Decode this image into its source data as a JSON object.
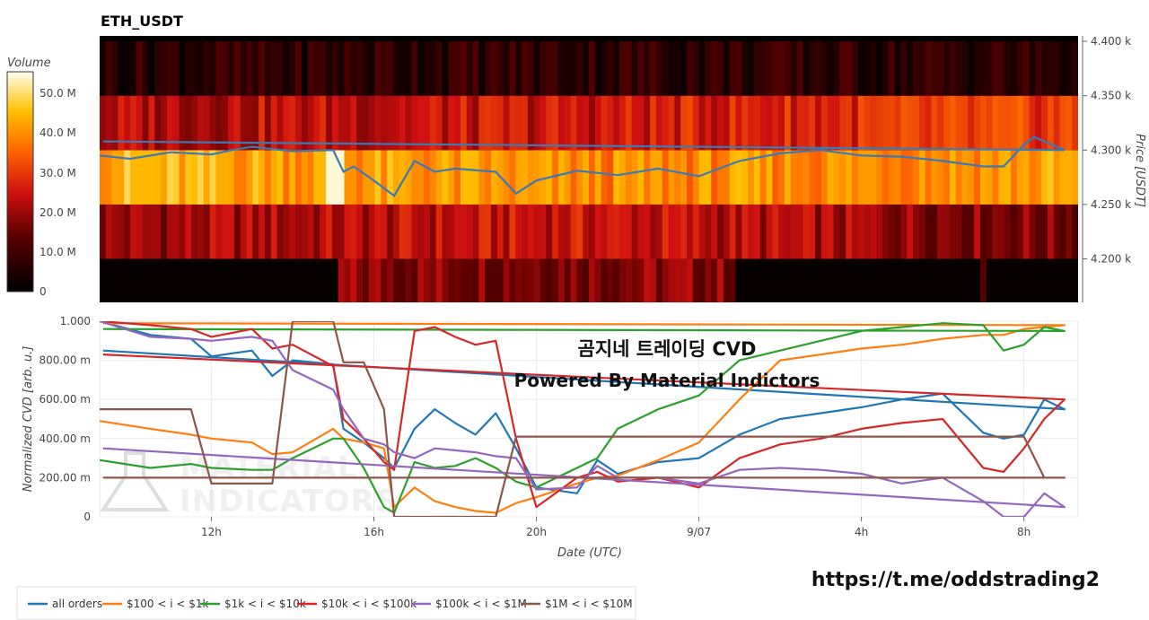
{
  "chart_data": [
    {
      "type": "heatmap",
      "title": "ETH_USDT",
      "ylabel": "Price [USDT]",
      "colorbar": {
        "label": "Volume",
        "ticks": [
          "0",
          "10.0 M",
          "20.0 M",
          "30.0 M",
          "40.0 M",
          "50.0 M"
        ],
        "range": [
          0,
          55000000
        ]
      },
      "price_ticks": [
        "4.200 k",
        "4.250 k",
        "4.300 k",
        "4.350 k",
        "4.400 k"
      ],
      "price_tick_values": [
        4200,
        4250,
        4300,
        4350,
        4400
      ],
      "ylim": [
        4160,
        4405
      ],
      "price_bands": [
        4175,
        4225,
        4275,
        4325,
        4375
      ],
      "band_levels": [
        [
          0.02,
          0.3,
          0.02
        ],
        [
          0.35,
          0.45,
          0.3
        ],
        [
          0.8,
          0.7,
          0.75
        ],
        [
          0.4,
          0.45,
          0.55
        ],
        [
          0.12,
          0.14,
          0.12
        ]
      ],
      "price_series": {
        "name": "Price",
        "color": "#3a7ab5",
        "x": [
          "09:15",
          "10:00",
          "11:00",
          "12:00",
          "12:30",
          "13:00",
          "14:00",
          "15:00",
          "15:15",
          "15:30",
          "16:00",
          "16:30",
          "17:00",
          "17:30",
          "18:00",
          "19:00",
          "19:30",
          "20:00",
          "21:00",
          "22:00",
          "23:00",
          "00:00",
          "01:00",
          "02:00",
          "03:00",
          "04:00",
          "05:00",
          "06:00",
          "07:00",
          "07:30",
          "08:00",
          "08:15",
          "08:30",
          "09:00",
          "09:20"
        ],
        "y": [
          4295,
          4292,
          4298,
          4296,
          4300,
          4303,
          4299,
          4300,
          4280,
          4285,
          4272,
          4258,
          4290,
          4280,
          4283,
          4280,
          4260,
          4272,
          4281,
          4277,
          4283,
          4276,
          4290,
          4297,
          4300,
          4295,
          4294,
          4290,
          4285,
          4285,
          4305,
          4312,
          4308,
          4300,
          4308
        ]
      }
    },
    {
      "type": "line",
      "ylabel": "Normalized CVD [arb. u.]",
      "xlabel": "Date (UTC)",
      "x_ticks": [
        "12h",
        "16h",
        "20h",
        "9/07",
        "4h",
        "8h"
      ],
      "y_ticks": [
        "0",
        "200.00 m",
        "400.00 m",
        "600.00 m",
        "800.00 m",
        "1.000"
      ],
      "ylim": [
        0,
        1
      ],
      "x": [
        "09:15",
        "10:30",
        "11:30",
        "12:00",
        "13:00",
        "13:30",
        "14:00",
        "15:00",
        "15:15",
        "15:45",
        "16:15",
        "16:30",
        "17:00",
        "17:30",
        "18:00",
        "18:30",
        "19:00",
        "19:30",
        "20:00",
        "21:00",
        "21:30",
        "22:00",
        "23:00",
        "00:00",
        "01:00",
        "02:00",
        "03:00",
        "04:00",
        "05:00",
        "06:00",
        "07:00",
        "07:30",
        "08:00",
        "08:30",
        "09:00",
        "09:20"
      ],
      "series": [
        {
          "name": "all orders",
          "color": "#1f77b4",
          "values": [
            1.0,
            0.93,
            0.91,
            0.82,
            0.85,
            0.72,
            0.8,
            0.78,
            0.45,
            0.38,
            0.3,
            0.25,
            0.45,
            0.55,
            0.48,
            0.42,
            0.53,
            0.35,
            0.15,
            0.12,
            0.29,
            0.22,
            0.28,
            0.3,
            0.42,
            0.5,
            0.53,
            0.56,
            0.6,
            0.63,
            0.43,
            0.4,
            0.42,
            0.6,
            0.55,
            0.85
          ]
        },
        {
          "name": "$100 < i < $1k",
          "color": "#ff7f0e",
          "values": [
            0.49,
            0.45,
            0.42,
            0.4,
            0.38,
            0.32,
            0.33,
            0.45,
            0.4,
            0.38,
            0.35,
            0.05,
            0.15,
            0.08,
            0.05,
            0.03,
            0.02,
            0.07,
            0.1,
            0.17,
            0.2,
            0.21,
            0.29,
            0.38,
            0.6,
            0.8,
            0.83,
            0.86,
            0.88,
            0.91,
            0.93,
            0.93,
            0.96,
            0.97,
            0.98,
            0.99
          ]
        },
        {
          "name": "$1k < i < $10k",
          "color": "#2ca02c",
          "values": [
            0.29,
            0.25,
            0.27,
            0.25,
            0.24,
            0.24,
            0.3,
            0.4,
            0.4,
            0.25,
            0.05,
            0.02,
            0.28,
            0.25,
            0.26,
            0.3,
            0.25,
            0.18,
            0.15,
            0.25,
            0.3,
            0.45,
            0.55,
            0.62,
            0.8,
            0.85,
            0.9,
            0.95,
            0.97,
            0.99,
            0.98,
            0.85,
            0.88,
            0.97,
            0.95,
            0.96
          ]
        },
        {
          "name": "$10k < i < $100k",
          "color": "#d62728",
          "values": [
            1.0,
            0.98,
            0.96,
            0.92,
            0.96,
            0.86,
            0.88,
            0.77,
            0.5,
            0.4,
            0.28,
            0.24,
            0.95,
            0.97,
            0.92,
            0.88,
            0.9,
            0.4,
            0.05,
            0.2,
            0.23,
            0.18,
            0.2,
            0.15,
            0.3,
            0.37,
            0.4,
            0.45,
            0.48,
            0.5,
            0.25,
            0.23,
            0.35,
            0.5,
            0.6,
            0.83
          ]
        },
        {
          "name": "$100k < i < $1M",
          "color": "#9467bd",
          "values": [
            1.0,
            0.92,
            0.91,
            0.9,
            0.92,
            0.9,
            0.75,
            0.65,
            0.55,
            0.4,
            0.37,
            0.33,
            0.3,
            0.35,
            0.34,
            0.33,
            0.31,
            0.3,
            0.14,
            0.15,
            0.26,
            0.2,
            0.2,
            0.17,
            0.24,
            0.25,
            0.24,
            0.22,
            0.17,
            0.2,
            0.08,
            0.0,
            0.0,
            0.12,
            0.05,
            0.35
          ]
        },
        {
          "name": "$1M < i < $10M",
          "color": "#8c564b",
          "values": [
            0.55,
            0.55,
            0.55,
            0.17,
            0.17,
            0.17,
            1.0,
            1.0,
            0.79,
            0.79,
            0.55,
            0.0,
            0.0,
            0.0,
            0.0,
            0.0,
            0.0,
            0.41,
            0.41,
            0.41,
            0.41,
            0.41,
            0.41,
            0.41,
            0.41,
            0.41,
            0.41,
            0.41,
            0.41,
            0.41,
            0.41,
            0.41,
            0.41,
            0.2,
            0.2,
            0.2
          ]
        }
      ]
    }
  ],
  "overlay": {
    "line1": "곰지네 트레이딩 CVD",
    "line2": "Powered By Material Indictors",
    "watermark_line1": "MATERIAL",
    "watermark_line2": "INDICATORS",
    "url": "https://t.me/oddstrading2"
  }
}
